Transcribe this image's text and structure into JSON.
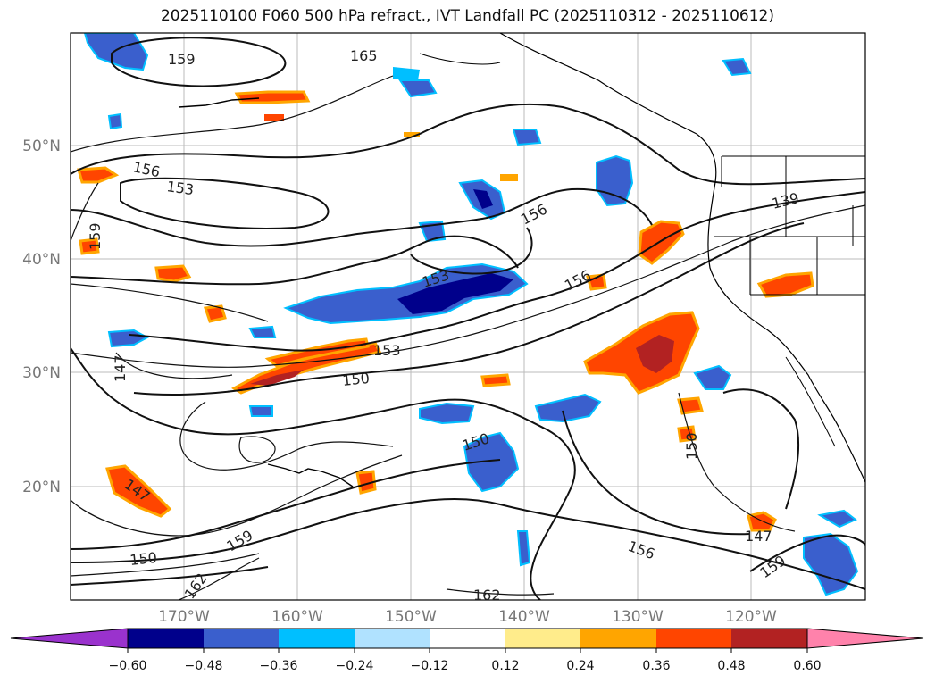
{
  "title": "2025110100 F060 500 hPa refract., IVT Landfall PC (2025110312 - 2025110612)",
  "latitude_labels": [
    "50°N",
    "40°N",
    "30°N",
    "20°N"
  ],
  "longitude_labels": [
    "170°W",
    "160°W",
    "150°W",
    "140°W",
    "130°W",
    "120°W"
  ],
  "contour_labels": [
    "159",
    "165",
    "156",
    "153",
    "159",
    "156",
    "153",
    "156",
    "139",
    "147",
    "153",
    "150",
    "150",
    "150",
    "147",
    "159",
    "150",
    "162",
    "156",
    "147",
    "159",
    "162"
  ],
  "colorbar": {
    "ticks": [
      "−0.60",
      "−0.48",
      "−0.36",
      "−0.24",
      "−0.12",
      "0.12",
      "0.24",
      "0.36",
      "0.48",
      "0.60"
    ],
    "colors": [
      "#9a32cd",
      "#00008b",
      "#3a5fcd",
      "#00bfff",
      "#b0e2ff",
      "#ffffff",
      "#ffec8b",
      "#ffa500",
      "#ff4500",
      "#b22222",
      "#ff82ab"
    ],
    "extend": "both"
  },
  "palette": {
    "contour": "#111111",
    "coast": "#000000",
    "grid": "#bbbbbb"
  }
}
